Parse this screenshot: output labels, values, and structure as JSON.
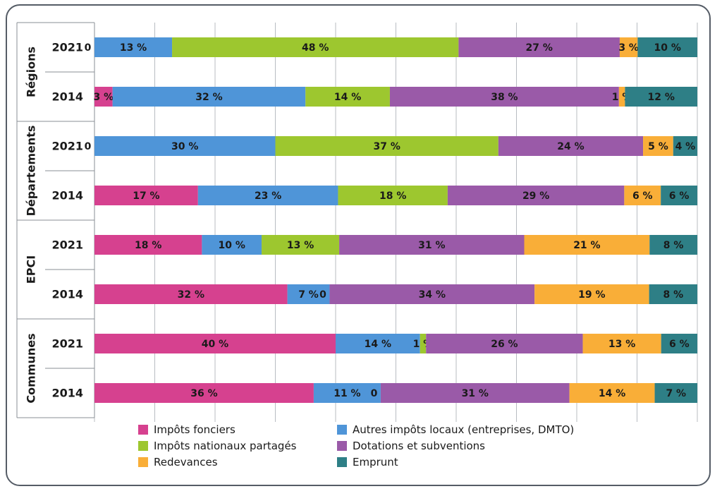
{
  "chart_data": {
    "type": "bar",
    "orientation": "horizontal",
    "stacked": true,
    "normalized": true,
    "xlim": [
      0,
      100
    ],
    "grid": true,
    "legend_position": "bottom",
    "groups": [
      {
        "name": "Régions",
        "rows": [
          {
            "year": "2021",
            "values": [
              0,
              13,
              48,
              27,
              3,
              10
            ]
          },
          {
            "year": "2014",
            "values": [
              3,
              32,
              14,
              38,
              1,
              12
            ]
          }
        ]
      },
      {
        "name": "Départements",
        "rows": [
          {
            "year": "2021",
            "values": [
              0,
              30,
              37,
              24,
              5,
              4
            ]
          },
          {
            "year": "2014",
            "values": [
              17,
              23,
              18,
              29,
              6,
              6
            ]
          }
        ]
      },
      {
        "name": "EPCI",
        "rows": [
          {
            "year": "2021",
            "values": [
              18,
              10,
              13,
              31,
              21,
              8
            ]
          },
          {
            "year": "2014",
            "values": [
              32,
              7,
              0,
              34,
              19,
              8
            ]
          }
        ]
      },
      {
        "name": "Communes",
        "rows": [
          {
            "year": "2021",
            "values": [
              40,
              14,
              1,
              26,
              13,
              6
            ]
          },
          {
            "year": "2014",
            "values": [
              36,
              11,
              0,
              31,
              14,
              7
            ]
          }
        ]
      }
    ],
    "series": [
      {
        "name": "Impôts fonciers",
        "color": "#d6418f"
      },
      {
        "name": "Autres impôts locaux (entreprises, DMTO)",
        "color": "#4f95d8"
      },
      {
        "name": "Impôts nationaux partagés",
        "color": "#9dc72f"
      },
      {
        "name": "Dotations et subventions",
        "color": "#9a5aa8"
      },
      {
        "name": "Redevances",
        "color": "#f9ae38"
      },
      {
        "name": "Emprunt",
        "color": "#2e7f86"
      }
    ],
    "unit_suffix": " %"
  }
}
